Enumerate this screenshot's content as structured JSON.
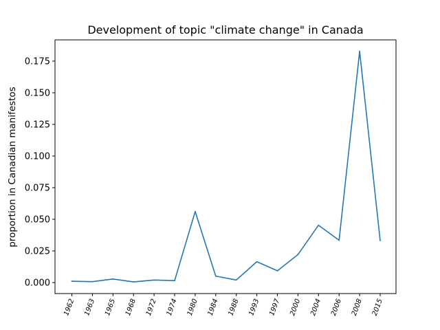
{
  "chart_data": {
    "type": "line",
    "title": "Development of topic \"climate change\" in Canada",
    "xlabel": "",
    "ylabel": "proportion in Canadian manifestos",
    "categories": [
      "1962",
      "1963",
      "1965",
      "1968",
      "1972",
      "1974",
      "1980",
      "1984",
      "1988",
      "1993",
      "1997",
      "2000",
      "2004",
      "2006",
      "2008",
      "2015"
    ],
    "series": [
      {
        "values": [
          0.001,
          0.0007,
          0.0028,
          0.0005,
          0.002,
          0.0015,
          0.0561,
          0.0051,
          0.002,
          0.0165,
          0.0093,
          0.0221,
          0.0453,
          0.0334,
          0.1827,
          0.0332
        ],
        "color": "#1f77b4"
      }
    ],
    "yticks": [
      "0.000",
      "0.025",
      "0.050",
      "0.075",
      "0.100",
      "0.125",
      "0.150",
      "0.175"
    ],
    "ylim": [
      -0.0087,
      0.1918
    ],
    "grid": false,
    "legend": "none"
  }
}
